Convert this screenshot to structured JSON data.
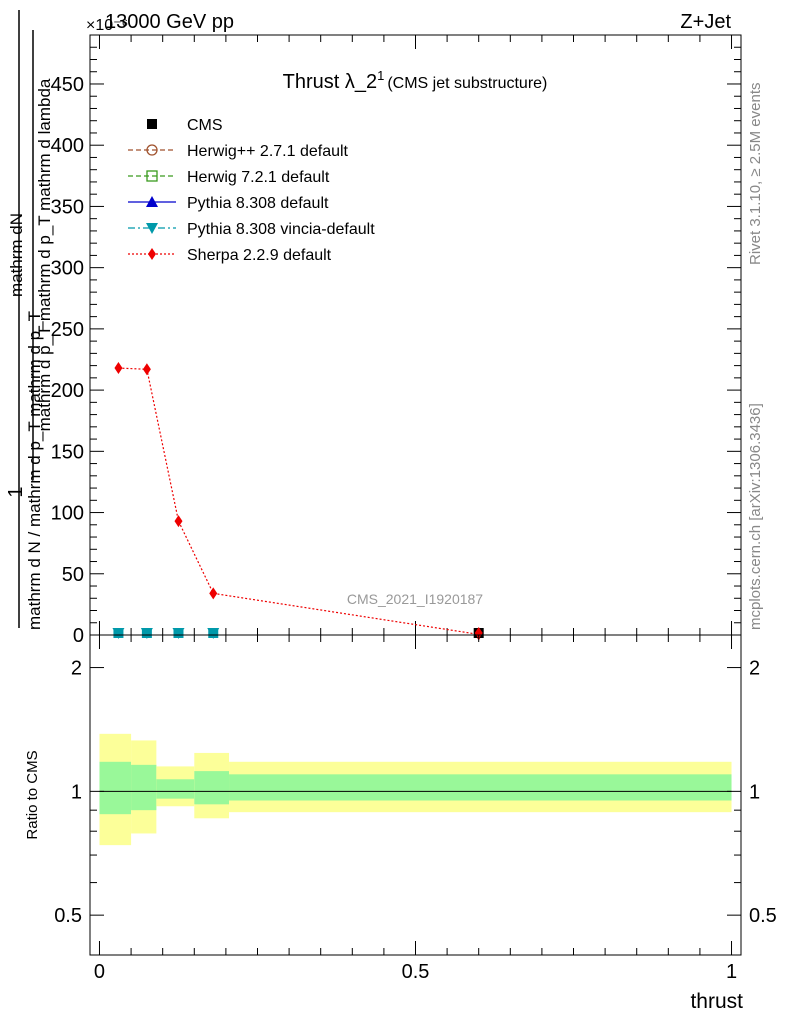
{
  "header": {
    "left": "13000 GeV pp",
    "right": "Z+Jet",
    "exponent": "×10⁻⁶"
  },
  "side_labels": {
    "rivet": "Rivet 3.1.10, ≥ 2.5M events",
    "mcplots": "mcplots.cern.ch [arXiv:1306.3436]"
  },
  "watermark": "CMS_2021_I1920187",
  "chart_data": [
    {
      "type": "line",
      "title": "Thrust λ_2",
      "title_sup": "1",
      "subtitle": "(CMS jet substructure)",
      "ylabel_num": "mathrm dN",
      "ylabel_den": "mathrm d p_T mathrm d p_T mathrm d lambda",
      "ylabel_prefix": "1",
      "ylabel_frac": "mathrm d N / mathrm d p_T mathrm d p_T",
      "ylim": [
        0,
        490
      ],
      "yticks": [
        0,
        50,
        100,
        150,
        200,
        250,
        300,
        350,
        400,
        450
      ],
      "xlim": [
        -0.015,
        1.015
      ],
      "legend": [
        {
          "name": "CMS",
          "color": "#000000",
          "marker": "square-filled",
          "line": "none"
        },
        {
          "name": "Herwig++ 2.7.1 default",
          "color": "#a0522d",
          "marker": "circle-open",
          "line": "dashed"
        },
        {
          "name": "Herwig 7.2.1 default",
          "color": "#3a9a1e",
          "marker": "square-open",
          "line": "dashed"
        },
        {
          "name": "Pythia 8.308 default",
          "color": "#0000cc",
          "marker": "triangle-up",
          "line": "solid"
        },
        {
          "name": "Pythia 8.308 vincia-default",
          "color": "#0099aa",
          "marker": "triangle-down",
          "line": "dashdot"
        },
        {
          "name": "Sherpa 2.2.9 default",
          "color": "#ee0000",
          "marker": "diamond",
          "line": "dotted"
        }
      ],
      "series": [
        {
          "name": "Sherpa 2.2.9 default",
          "x": [
            0.03,
            0.075,
            0.125,
            0.18,
            0.6
          ],
          "y": [
            218,
            217,
            93,
            34,
            0.5
          ]
        },
        {
          "name": "CMS",
          "x": [
            0.03,
            0.075,
            0.125,
            0.18,
            0.6
          ],
          "y": [
            0,
            0,
            0,
            0,
            0
          ]
        }
      ]
    },
    {
      "type": "area",
      "ylabel": "Ratio to CMS",
      "xlabel": "thrust",
      "log_scale_y": true,
      "ylim": [
        0.4,
        2.4
      ],
      "yticks": [
        0.5,
        1,
        2
      ],
      "ytick_labels": [
        "0.5",
        "1",
        "2"
      ],
      "xticks": [
        0,
        0.5,
        1
      ],
      "xtick_labels": [
        "0",
        "0.5",
        "1"
      ],
      "bins": [
        [
          0,
          0.05
        ],
        [
          0.05,
          0.09
        ],
        [
          0.09,
          0.15
        ],
        [
          0.15,
          0.205
        ],
        [
          0.205,
          1.0
        ]
      ],
      "band_inner": [
        [
          0.88,
          1.18
        ],
        [
          0.9,
          1.16
        ],
        [
          0.96,
          1.07
        ],
        [
          0.93,
          1.12
        ],
        [
          0.95,
          1.1
        ]
      ],
      "band_outer": [
        [
          0.74,
          1.38
        ],
        [
          0.79,
          1.33
        ],
        [
          0.92,
          1.15
        ],
        [
          0.86,
          1.24
        ],
        [
          0.89,
          1.18
        ]
      ],
      "inner_color": "#99f899",
      "outer_color": "#fcff99",
      "reference": 1
    }
  ]
}
